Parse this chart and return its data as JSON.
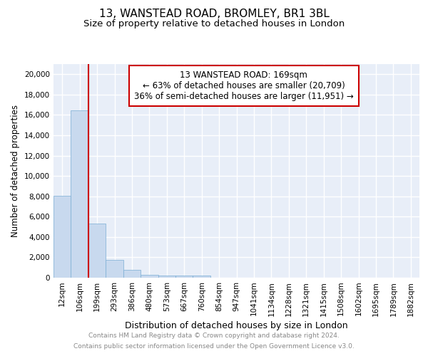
{
  "title1": "13, WANSTEAD ROAD, BROMLEY, BR1 3BL",
  "title2": "Size of property relative to detached houses in London",
  "xlabel": "Distribution of detached houses by size in London",
  "ylabel": "Number of detached properties",
  "bin_labels": [
    "12sqm",
    "106sqm",
    "199sqm",
    "293sqm",
    "386sqm",
    "480sqm",
    "573sqm",
    "667sqm",
    "760sqm",
    "854sqm",
    "947sqm",
    "1041sqm",
    "1134sqm",
    "1228sqm",
    "1321sqm",
    "1415sqm",
    "1508sqm",
    "1602sqm",
    "1695sqm",
    "1789sqm",
    "1882sqm"
  ],
  "bar_heights": [
    8050,
    16450,
    5300,
    1750,
    750,
    300,
    200,
    200,
    200,
    0,
    0,
    0,
    0,
    0,
    0,
    0,
    0,
    0,
    0,
    0,
    0
  ],
  "bar_color": "#c8d9ee",
  "bar_edge_color": "#7aadd4",
  "vline_color": "#cc0000",
  "vline_index": 1.5,
  "annotation_text": "13 WANSTEAD ROAD: 169sqm\n← 63% of detached houses are smaller (20,709)\n36% of semi-detached houses are larger (11,951) →",
  "annotation_box_color": "#ffffff",
  "annotation_box_edge": "#cc0000",
  "ylim_max": 21000,
  "yticks": [
    0,
    2000,
    4000,
    6000,
    8000,
    10000,
    12000,
    14000,
    16000,
    18000,
    20000
  ],
  "background_color": "#e8eef8",
  "grid_color": "#ffffff",
  "title1_fontsize": 11,
  "title2_fontsize": 9.5,
  "xlabel_fontsize": 9,
  "ylabel_fontsize": 8.5,
  "tick_fontsize": 7.5,
  "footer_fontsize": 6.5,
  "annotation_fontsize": 8.5,
  "footer1": "Contains HM Land Registry data © Crown copyright and database right 2024.",
  "footer2": "Contains public sector information licensed under the Open Government Licence v3.0."
}
